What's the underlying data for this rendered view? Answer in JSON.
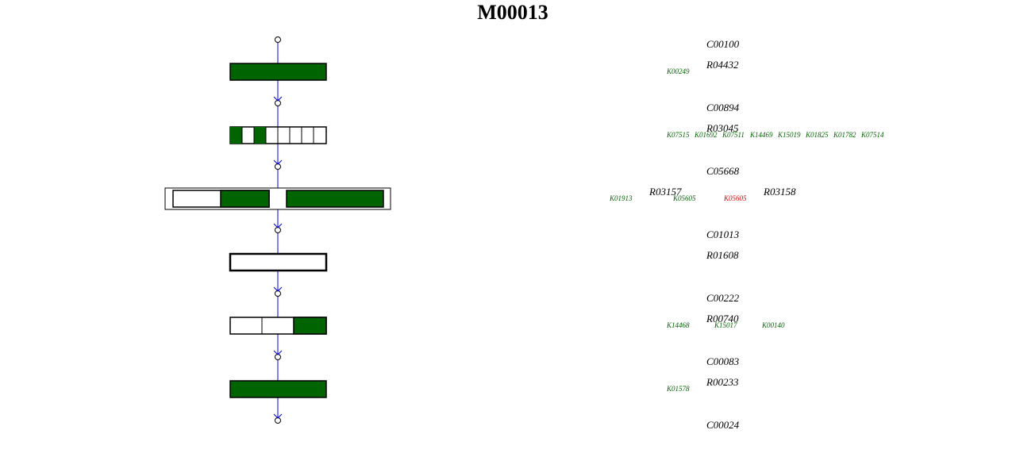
{
  "title": "M00013",
  "compounds": [
    "C00100",
    "C00894",
    "C05668",
    "C01013",
    "C00222",
    "C00083",
    "C00024"
  ],
  "steps": [
    {
      "reactions": [
        {
          "id": "R04432",
          "orthologs": [
            {
              "label": "K00249",
              "color": "#006400"
            }
          ]
        }
      ]
    },
    {
      "reactions": [
        {
          "id": "R03045",
          "orthologs": [
            {
              "label": "K07515",
              "color": "#006400"
            },
            {
              "label": "K01692",
              "color": "#006400"
            },
            {
              "label": "K07511",
              "color": "#006400"
            },
            {
              "label": "K14469",
              "color": "#006400"
            },
            {
              "label": "K15019",
              "color": "#006400"
            },
            {
              "label": "K01825",
              "color": "#006400"
            },
            {
              "label": "K01782",
              "color": "#006400"
            },
            {
              "label": "K07514",
              "color": "#006400"
            }
          ]
        }
      ]
    },
    {
      "reactions": [
        {
          "id": "R03157",
          "orthologs": [
            {
              "label": "K01913",
              "color": "#006400"
            },
            {
              "label": "K05605",
              "color": "#006400"
            }
          ]
        },
        {
          "id": "R03158",
          "orthologs": [
            {
              "label": "K05605",
              "color": "#e00000"
            }
          ]
        }
      ]
    },
    {
      "reactions": [
        {
          "id": "R01608",
          "orthologs": []
        }
      ]
    },
    {
      "reactions": [
        {
          "id": "R00740",
          "orthologs": [
            {
              "label": "K14468",
              "color": "#006400"
            },
            {
              "label": "K15017",
              "color": "#006400"
            },
            {
              "label": "K00140",
              "color": "#006400"
            }
          ]
        }
      ]
    },
    {
      "reactions": [
        {
          "id": "R00233",
          "orthologs": [
            {
              "label": "K01578",
              "color": "#006400"
            }
          ]
        }
      ]
    }
  ]
}
